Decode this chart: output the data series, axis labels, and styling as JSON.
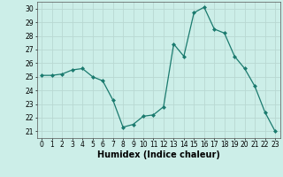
{
  "x": [
    0,
    1,
    2,
    3,
    4,
    5,
    6,
    7,
    8,
    9,
    10,
    11,
    12,
    13,
    14,
    15,
    16,
    17,
    18,
    19,
    20,
    21,
    22,
    23
  ],
  "y": [
    25.1,
    25.1,
    25.2,
    25.5,
    25.6,
    25.0,
    24.7,
    23.3,
    21.3,
    21.5,
    22.1,
    22.2,
    22.8,
    27.4,
    26.5,
    29.7,
    30.1,
    28.5,
    28.2,
    26.5,
    25.6,
    24.3,
    22.4,
    21.0
  ],
  "xlabel": "Humidex (Indice chaleur)",
  "xlim": [
    -0.5,
    23.5
  ],
  "ylim": [
    20.5,
    30.5
  ],
  "yticks": [
    21,
    22,
    23,
    24,
    25,
    26,
    27,
    28,
    29,
    30
  ],
  "xticks": [
    0,
    1,
    2,
    3,
    4,
    5,
    6,
    7,
    8,
    9,
    10,
    11,
    12,
    13,
    14,
    15,
    16,
    17,
    18,
    19,
    20,
    21,
    22,
    23
  ],
  "line_color": "#1a7a6e",
  "marker": "D",
  "marker_size": 2.0,
  "bg_color": "#cceee8",
  "grid_color": "#b8d8d2",
  "tick_label_fontsize": 5.5,
  "xlabel_fontsize": 7.0
}
